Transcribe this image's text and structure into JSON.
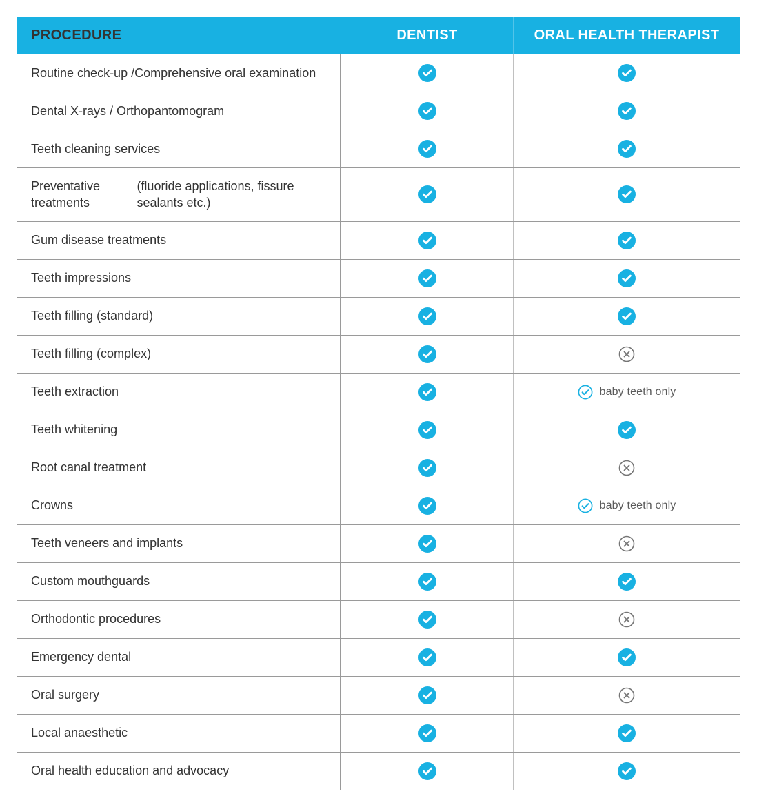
{
  "colors": {
    "accent": "#18b1e2",
    "ink": "#2b2b2b",
    "rule": "#9a9a9a",
    "rule_light": "#c0c0c0",
    "muted_text": "#5a5a5a",
    "x_stroke": "#757575",
    "check_outline_stroke": "#18b1e2"
  },
  "header": {
    "procedure": "PROCEDURE",
    "dentist": "DENTIST",
    "oht": "ORAL HEALTH THERAPIST"
  },
  "legend": {
    "partial_note": "baby teeth only"
  },
  "rows": [
    {
      "label_line1": "Routine check-up /",
      "label_line2": "Comprehensive oral examination",
      "dentist": "yes",
      "oht": "yes"
    },
    {
      "label_line1": "Dental X-rays / Orthopantomogram",
      "label_line2": "",
      "dentist": "yes",
      "oht": "yes"
    },
    {
      "label_line1": "Teeth cleaning services",
      "label_line2": "",
      "dentist": "yes",
      "oht": "yes"
    },
    {
      "label_line1": "Preventative treatments",
      "label_line2": "(fluoride applications, fissure sealants etc.)",
      "dentist": "yes",
      "oht": "yes"
    },
    {
      "label_line1": "Gum disease treatments",
      "label_line2": "",
      "dentist": "yes",
      "oht": "yes"
    },
    {
      "label_line1": "Teeth impressions",
      "label_line2": "",
      "dentist": "yes",
      "oht": "yes"
    },
    {
      "label_line1": "Teeth filling (standard)",
      "label_line2": "",
      "dentist": "yes",
      "oht": "yes"
    },
    {
      "label_line1": "Teeth filling (complex)",
      "label_line2": "",
      "dentist": "yes",
      "oht": "no"
    },
    {
      "label_line1": "Teeth extraction",
      "label_line2": "",
      "dentist": "yes",
      "oht": "partial"
    },
    {
      "label_line1": "Teeth whitening",
      "label_line2": "",
      "dentist": "yes",
      "oht": "yes"
    },
    {
      "label_line1": "Root canal treatment",
      "label_line2": "",
      "dentist": "yes",
      "oht": "no"
    },
    {
      "label_line1": "Crowns",
      "label_line2": "",
      "dentist": "yes",
      "oht": "partial"
    },
    {
      "label_line1": "Teeth veneers and implants",
      "label_line2": "",
      "dentist": "yes",
      "oht": "no"
    },
    {
      "label_line1": "Custom mouthguards",
      "label_line2": "",
      "dentist": "yes",
      "oht": "yes"
    },
    {
      "label_line1": "Orthodontic procedures",
      "label_line2": "",
      "dentist": "yes",
      "oht": "no"
    },
    {
      "label_line1": "Emergency dental",
      "label_line2": "",
      "dentist": "yes",
      "oht": "yes"
    },
    {
      "label_line1": "Oral surgery",
      "label_line2": "",
      "dentist": "yes",
      "oht": "no"
    },
    {
      "label_line1": "Local anaesthetic",
      "label_line2": "",
      "dentist": "yes",
      "oht": "yes"
    },
    {
      "label_line1": "Oral health education and advocacy",
      "label_line2": "",
      "dentist": "yes",
      "oht": "yes"
    }
  ]
}
